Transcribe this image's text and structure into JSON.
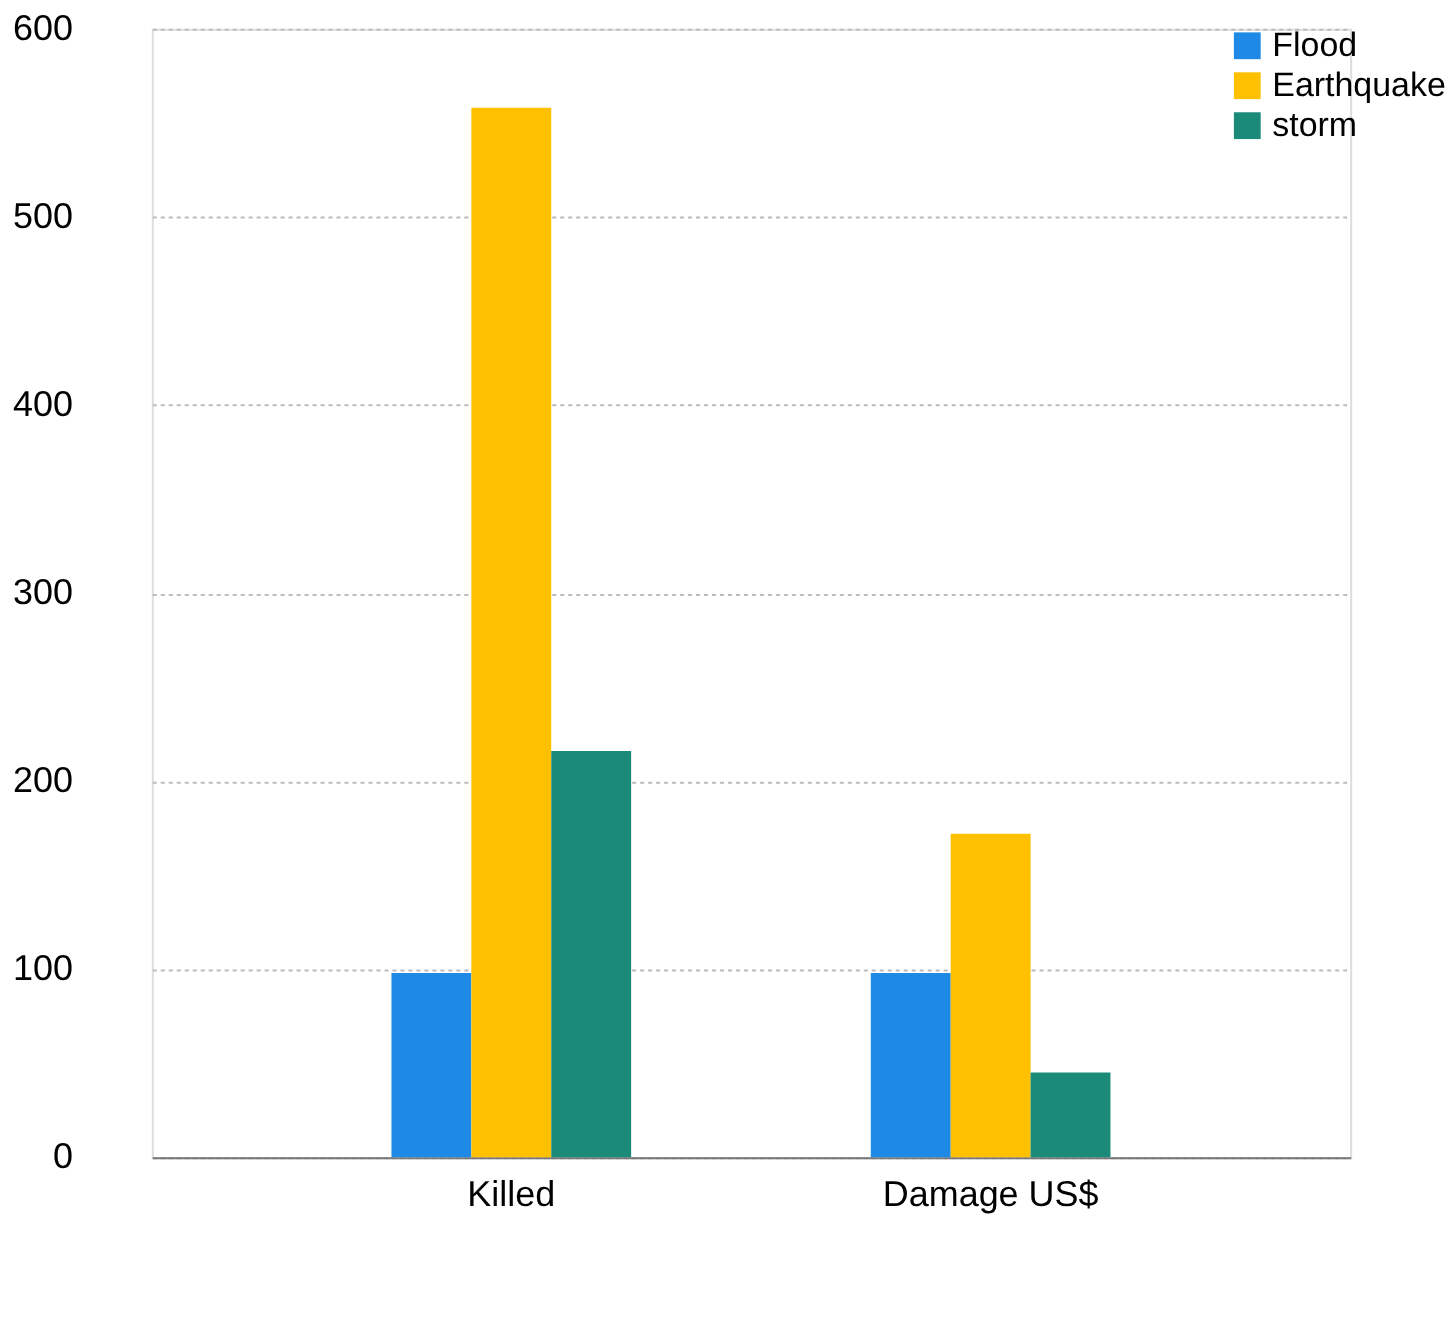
{
  "chart_data": {
    "type": "bar",
    "categories": [
      "Killed",
      "Damage US$"
    ],
    "series": [
      {
        "name": "Flood",
        "color": "#1e8ae6",
        "values": [
          98,
          98
        ]
      },
      {
        "name": "Earthquake",
        "color": "#ffc000",
        "values": [
          558,
          172
        ]
      },
      {
        "name": "storm",
        "color": "#1b8a78",
        "values": [
          216,
          45
        ]
      }
    ],
    "ylim": [
      0,
      600
    ],
    "yticks": [
      0,
      100,
      200,
      300,
      400,
      500,
      600
    ],
    "grid": "y",
    "legend": "right"
  }
}
